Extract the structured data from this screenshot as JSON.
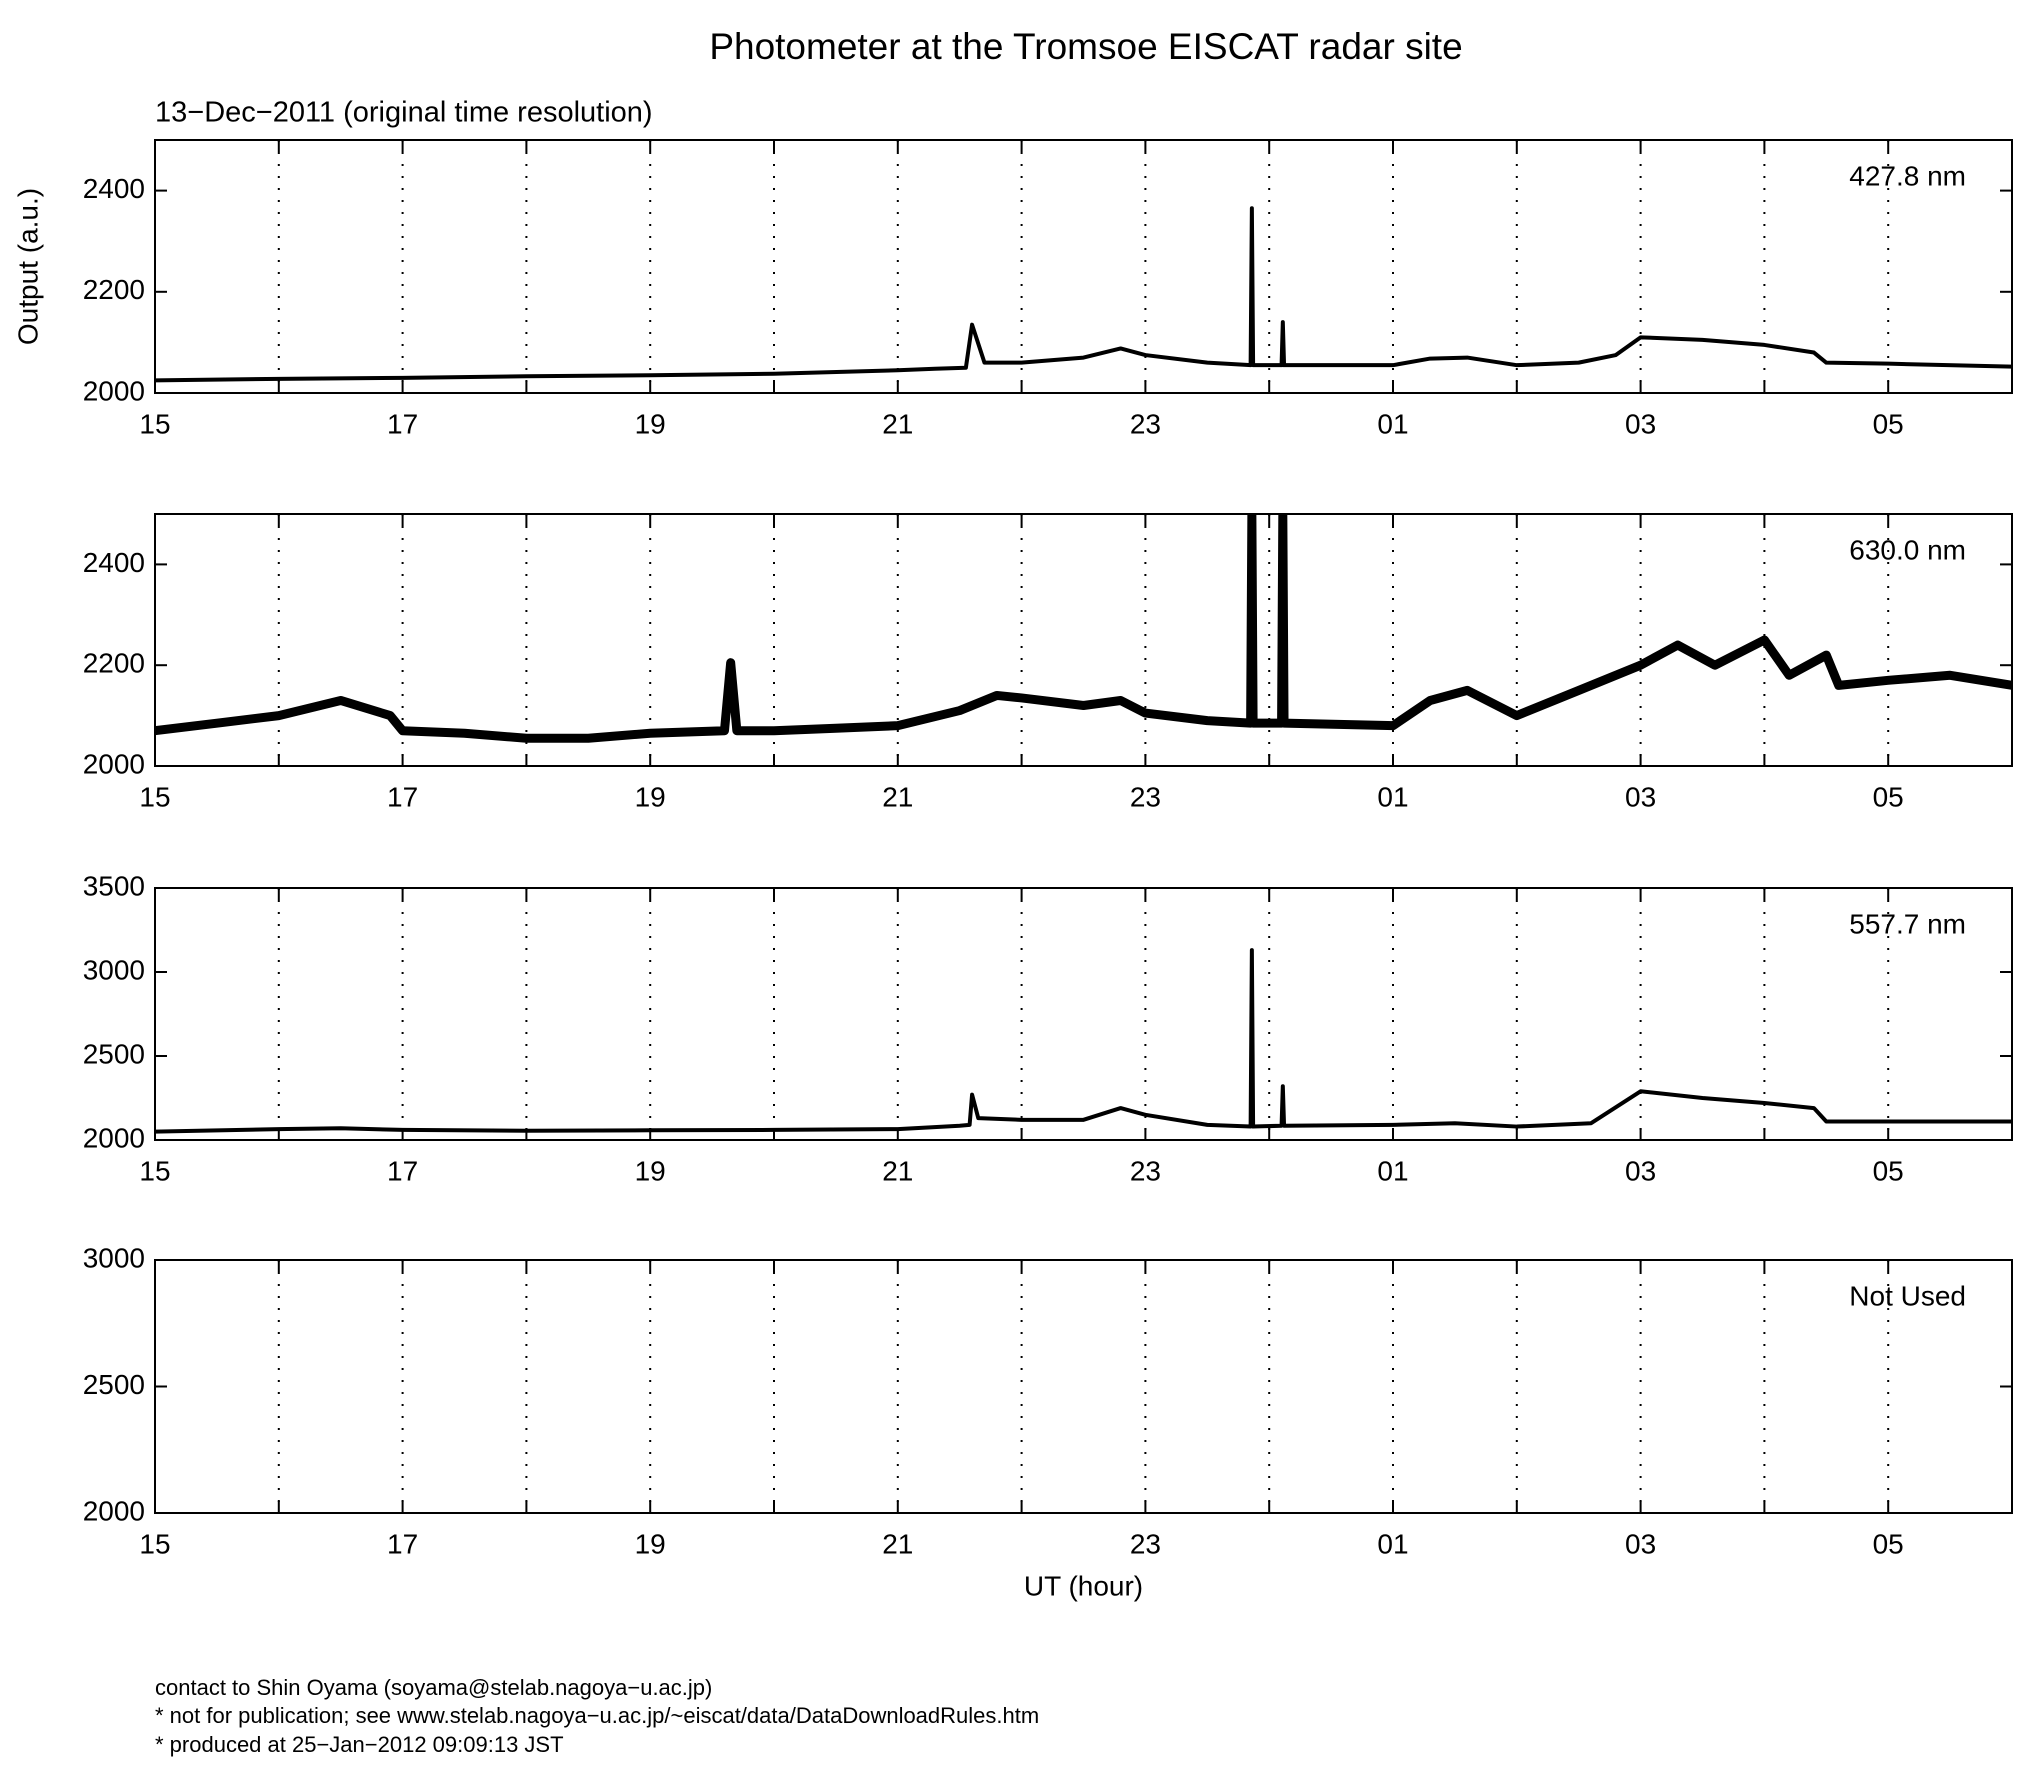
{
  "title": "Photometer at the Tromsoe EISCAT radar site",
  "subtitle": "13−Dec−2011 (original time resolution)",
  "footer": [
    "contact to Shin Oyama (soyama@stelab.nagoya−u.ac.jp)",
    "* not for publication; see www.stelab.nagoya−u.ac.jp/~eiscat/data/DataDownloadRules.htm",
    "* produced at 25−Jan−2012 09:09:13 JST"
  ],
  "chart_data": [
    {
      "type": "line",
      "annotation": "427.8 nm",
      "ylabel": "Output (a.u.)",
      "color": "#000000",
      "grid": true,
      "xlim": [
        15,
        30
      ],
      "xticks": [
        15,
        17,
        19,
        21,
        23,
        {
          "value": 25,
          "label": "01"
        },
        {
          "value": 27,
          "label": "03"
        },
        {
          "value": 29,
          "label": "05"
        }
      ],
      "xminorticks": [
        16,
        18,
        20,
        22,
        24,
        26,
        28
      ],
      "ylim": [
        2000,
        2500
      ],
      "yticks": [
        2000,
        2200,
        2400
      ],
      "x": [
        15,
        16,
        17,
        18,
        19,
        20,
        21,
        21.3,
        21.55,
        21.6,
        21.7,
        22,
        22.5,
        22.8,
        23,
        23.5,
        23.85,
        23.86,
        23.87,
        24.1,
        24.11,
        24.12,
        25,
        25.3,
        25.6,
        26,
        26.5,
        26.8,
        27,
        27.5,
        28,
        28.4,
        28.5,
        29,
        30
      ],
      "values": [
        2025,
        2028,
        2030,
        2033,
        2035,
        2038,
        2045,
        2048,
        2050,
        2135,
        2060,
        2060,
        2070,
        2088,
        2075,
        2060,
        2055,
        2365,
        2055,
        2055,
        2140,
        2055,
        2055,
        2068,
        2070,
        2055,
        2060,
        2075,
        2110,
        2105,
        2095,
        2080,
        2060,
        2058,
        2052
      ]
    },
    {
      "type": "line",
      "annotation": "630.0 nm",
      "color": "#000000",
      "grid": true,
      "xlim": [
        15,
        30
      ],
      "xticks": [
        15,
        17,
        19,
        21,
        23,
        {
          "value": 25,
          "label": "01"
        },
        {
          "value": 27,
          "label": "03"
        },
        {
          "value": 29,
          "label": "05"
        }
      ],
      "xminorticks": [
        16,
        18,
        20,
        22,
        24,
        26,
        28
      ],
      "ylim": [
        2000,
        2500
      ],
      "yticks": [
        2000,
        2200,
        2400
      ],
      "x": [
        15,
        15.5,
        16,
        16.5,
        16.9,
        17,
        17.5,
        18,
        18.5,
        19,
        19.6,
        19.65,
        19.7,
        20,
        20.5,
        21,
        21.5,
        21.8,
        22,
        22.5,
        22.8,
        23,
        23.5,
        23.85,
        23.86,
        23.87,
        24.1,
        24.11,
        24.12,
        25,
        25.3,
        25.6,
        26,
        26.5,
        27,
        27.3,
        27.6,
        28,
        28.2,
        28.5,
        28.6,
        29,
        29.5,
        30
      ],
      "values": [
        2070,
        2085,
        2100,
        2130,
        2100,
        2070,
        2065,
        2055,
        2055,
        2065,
        2070,
        2205,
        2070,
        2070,
        2075,
        2080,
        2110,
        2140,
        2135,
        2120,
        2130,
        2105,
        2090,
        2085,
        2500,
        2085,
        2085,
        2500,
        2085,
        2080,
        2130,
        2150,
        2100,
        2150,
        2200,
        2240,
        2200,
        2250,
        2180,
        2220,
        2160,
        2170,
        2180,
        2160
      ]
    },
    {
      "type": "line",
      "annotation": "557.7 nm",
      "color": "#000000",
      "grid": true,
      "xlim": [
        15,
        30
      ],
      "xticks": [
        15,
        17,
        19,
        21,
        23,
        {
          "value": 25,
          "label": "01"
        },
        {
          "value": 27,
          "label": "03"
        },
        {
          "value": 29,
          "label": "05"
        }
      ],
      "xminorticks": [
        16,
        18,
        20,
        22,
        24,
        26,
        28
      ],
      "ylim": [
        2000,
        3500
      ],
      "yticks": [
        2000,
        2500,
        3000,
        3500
      ],
      "x": [
        15,
        16,
        16.5,
        17,
        18,
        19,
        20,
        21,
        21.5,
        21.58,
        21.6,
        21.65,
        22,
        22.5,
        22.8,
        23,
        23.5,
        23.85,
        23.86,
        23.87,
        24.1,
        24.11,
        24.12,
        25,
        25.5,
        26,
        26.6,
        27,
        27.5,
        28,
        28.4,
        28.5,
        29,
        30
      ],
      "values": [
        2050,
        2065,
        2070,
        2060,
        2055,
        2058,
        2060,
        2065,
        2085,
        2090,
        2270,
        2130,
        2120,
        2120,
        2190,
        2150,
        2090,
        2080,
        3130,
        2080,
        2085,
        2320,
        2085,
        2090,
        2100,
        2080,
        2100,
        2290,
        2250,
        2220,
        2190,
        2110,
        2110,
        2110
      ]
    },
    {
      "type": "line",
      "annotation": "Not Used",
      "xlabel": "UT (hour)",
      "grid": true,
      "xlim": [
        15,
        30
      ],
      "xticks": [
        15,
        17,
        19,
        21,
        23,
        {
          "value": 25,
          "label": "01"
        },
        {
          "value": 27,
          "label": "03"
        },
        {
          "value": 29,
          "label": "05"
        }
      ],
      "xminorticks": [
        16,
        18,
        20,
        22,
        24,
        26,
        28
      ],
      "ylim": [
        2000,
        3000
      ],
      "yticks": [
        2000,
        2500,
        3000
      ]
    }
  ]
}
